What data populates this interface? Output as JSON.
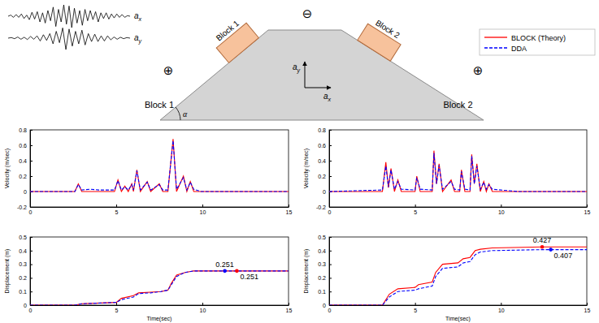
{
  "chart_data": [
    {
      "type": "line",
      "title": "Block 1",
      "ylabel": "Velocity (m/sec)",
      "xlim": [
        0,
        15
      ],
      "xticks": [
        0,
        5,
        10,
        15
      ],
      "ylim": [
        -0.2,
        0.8
      ],
      "yticks": [
        -0.2,
        0,
        0.2,
        0.4,
        0.6,
        0.8
      ],
      "x": [
        0,
        2.6,
        2.8,
        3.0,
        3.5,
        4.0,
        4.9,
        5.1,
        5.3,
        5.5,
        5.7,
        5.9,
        6.0,
        6.2,
        6.4,
        6.8,
        7.0,
        7.5,
        7.7,
        8.0,
        8.3,
        8.5,
        8.9,
        9.1,
        9.3,
        9.5,
        9.9,
        15
      ],
      "series": [
        {
          "name": "BLOCK (Theory)",
          "color": "#ff0000",
          "line_style": "solid",
          "values": [
            0,
            0,
            0.1,
            0,
            0,
            0,
            0,
            0.15,
            0,
            0.07,
            0,
            0.1,
            0,
            0.28,
            0,
            0.13,
            0,
            0.1,
            0,
            0,
            0.68,
            0,
            0.2,
            0,
            0.13,
            0,
            0,
            0
          ]
        },
        {
          "name": "DDA",
          "color": "#0000ff",
          "line_style": "dashed",
          "values": [
            0,
            0,
            0.09,
            0.02,
            0.03,
            0.02,
            0.02,
            0.14,
            0.02,
            0.06,
            0.02,
            0.09,
            0.02,
            0.27,
            0.02,
            0.12,
            0.02,
            0.09,
            0.02,
            0.02,
            0.66,
            0.03,
            0.18,
            0.02,
            0.12,
            0.03,
            0,
            0
          ]
        }
      ]
    },
    {
      "type": "line",
      "xlabel": "Time(sec)",
      "ylabel": "Displacement (m)",
      "xlim": [
        0,
        15
      ],
      "xticks": [
        0,
        5,
        10,
        15
      ],
      "ylim": [
        0,
        0.5
      ],
      "yticks": [
        0,
        0.1,
        0.2,
        0.3,
        0.4,
        0.5
      ],
      "x": [
        0,
        2.6,
        3.0,
        5.0,
        5.3,
        6.0,
        6.3,
        7.0,
        7.6,
        8.0,
        8.2,
        8.5,
        9.0,
        9.5,
        10,
        15
      ],
      "series": [
        {
          "name": "BLOCK (Theory)",
          "color": "#ff0000",
          "line_style": "solid",
          "values": [
            0,
            0,
            0.01,
            0.02,
            0.05,
            0.07,
            0.09,
            0.095,
            0.1,
            0.11,
            0.16,
            0.22,
            0.24,
            0.251,
            0.251,
            0.251
          ]
        },
        {
          "name": "DDA",
          "color": "#0000ff",
          "line_style": "dashed",
          "values": [
            0,
            0,
            0.01,
            0.02,
            0.04,
            0.06,
            0.085,
            0.09,
            0.1,
            0.11,
            0.15,
            0.21,
            0.24,
            0.251,
            0.251,
            0.251
          ]
        }
      ],
      "annotations": [
        {
          "x": 11.3,
          "y": 0.251,
          "text": "0.251",
          "color": "#0000ff"
        },
        {
          "x": 12.0,
          "y": 0.251,
          "text": "0.251",
          "color": "#ff0000"
        }
      ]
    },
    {
      "type": "line",
      "title": "Block 2",
      "ylabel": "Velocity (m/sec)",
      "xlim": [
        0,
        15
      ],
      "xticks": [
        0,
        5,
        10,
        15
      ],
      "ylim": [
        -0.2,
        0.8
      ],
      "yticks": [
        -0.2,
        0,
        0.2,
        0.4,
        0.6,
        0.8
      ],
      "x": [
        0,
        3.1,
        3.3,
        3.45,
        3.6,
        3.8,
        4.0,
        4.2,
        5.0,
        5.1,
        5.3,
        6.0,
        6.1,
        6.25,
        6.4,
        6.6,
        7.1,
        7.3,
        7.6,
        7.7,
        7.9,
        8.2,
        8.3,
        8.45,
        8.6,
        8.8,
        9.0,
        9.15,
        9.3,
        9.5,
        11,
        15
      ],
      "series": [
        {
          "name": "BLOCK (Theory)",
          "color": "#ff0000",
          "line_style": "solid",
          "values": [
            0,
            0,
            0.38,
            0.05,
            0.3,
            0,
            0.15,
            0,
            0,
            0.2,
            0,
            0,
            0.53,
            0.1,
            0.36,
            0,
            0.15,
            0,
            0,
            0.28,
            0,
            0,
            0.48,
            0.1,
            0.36,
            0,
            0.13,
            0,
            0.1,
            0,
            0,
            0
          ]
        },
        {
          "name": "DDA",
          "color": "#0000ff",
          "line_style": "dashed",
          "values": [
            0,
            0.02,
            0.33,
            0.06,
            0.28,
            0.03,
            0.13,
            0.03,
            0.02,
            0.18,
            0.03,
            0.02,
            0.5,
            0.1,
            0.34,
            0.03,
            0.13,
            0.03,
            0.02,
            0.26,
            0.03,
            0.02,
            0.46,
            0.1,
            0.33,
            0.03,
            0.12,
            0.03,
            0.09,
            0.03,
            0,
            0
          ]
        }
      ]
    },
    {
      "type": "line",
      "xlabel": "Time(sec)",
      "ylabel": "Displacement (m)",
      "xlim": [
        0,
        15
      ],
      "xticks": [
        0,
        5,
        10,
        15
      ],
      "ylim": [
        0,
        0.5
      ],
      "yticks": [
        0,
        0.1,
        0.2,
        0.3,
        0.4,
        0.5
      ],
      "x": [
        0,
        3.1,
        3.5,
        4.0,
        5.0,
        5.2,
        6.0,
        6.2,
        6.6,
        7.5,
        7.8,
        8.2,
        8.5,
        8.8,
        9.5,
        12.4,
        15
      ],
      "series": [
        {
          "name": "BLOCK (Theory)",
          "color": "#ff0000",
          "line_style": "solid",
          "values": [
            0,
            0,
            0.08,
            0.12,
            0.13,
            0.15,
            0.17,
            0.24,
            0.3,
            0.31,
            0.34,
            0.35,
            0.4,
            0.41,
            0.42,
            0.427,
            0.427
          ]
        },
        {
          "name": "DDA",
          "color": "#0000ff",
          "line_style": "dashed",
          "values": [
            0,
            0,
            0.06,
            0.1,
            0.11,
            0.12,
            0.14,
            0.21,
            0.27,
            0.28,
            0.31,
            0.32,
            0.37,
            0.39,
            0.4,
            0.407,
            0.407
          ]
        }
      ],
      "annotations": [
        {
          "x": 12.4,
          "y": 0.427,
          "text": "0.427",
          "color": "#ff0000"
        },
        {
          "x": 12.9,
          "y": 0.407,
          "text": "0.407",
          "color": "#0000ff"
        }
      ]
    }
  ],
  "diagram": {
    "waveforms": [
      {
        "label": "a",
        "subscript": "x",
        "values": [
          0,
          0.1,
          -0.1,
          0.15,
          -0.1,
          0.2,
          -0.2,
          0.1,
          -0.3,
          0.35,
          -0.25,
          0.4,
          -0.5,
          0.3,
          -0.6,
          0.5,
          -0.4,
          0.8,
          -0.9,
          0.6,
          -0.5,
          1,
          -0.7,
          0.9,
          -1,
          0.7,
          -0.6,
          0.5,
          -0.8,
          0.6,
          -0.4,
          0.5,
          -0.3,
          0.4,
          -0.5,
          0.3,
          -0.2,
          0.3,
          -0.25,
          0.2,
          -0.15,
          0.2,
          -0.1,
          0.15,
          -0.1,
          0.05,
          0
        ]
      },
      {
        "label": "a",
        "subscript": "y",
        "values": [
          0,
          0.05,
          -0.05,
          0.1,
          -0.1,
          0.08,
          -0.12,
          0.15,
          -0.1,
          0.2,
          -0.25,
          0.3,
          -0.2,
          0.4,
          -0.5,
          0.6,
          -0.4,
          0.9,
          -1,
          0.8,
          -0.7,
          0.6,
          -0.5,
          0.7,
          -0.6,
          0.4,
          -0.3,
          0.35,
          -0.3,
          0.2,
          -0.25,
          0.2,
          -0.15,
          0.1,
          -0.1,
          0.08,
          -0.05,
          0.05,
          0
        ]
      }
    ],
    "blocks": [
      "Block 1",
      "Block 2"
    ],
    "signs": [
      "⊕",
      "⊖",
      "⊕"
    ],
    "angle_label": "α",
    "axes": [
      {
        "label": "a",
        "subscript": "y"
      },
      {
        "label": "a",
        "subscript": "x"
      }
    ]
  }
}
